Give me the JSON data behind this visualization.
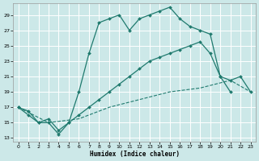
{
  "xlabel": "Humidex (Indice chaleur)",
  "bg_color": "#cce8e8",
  "line_color": "#1f7a6e",
  "grid_color": "#ffffff",
  "xlim": [
    -0.5,
    23.5
  ],
  "ylim": [
    12.5,
    30.5
  ],
  "yticks": [
    13,
    15,
    17,
    19,
    21,
    23,
    25,
    27,
    29
  ],
  "xticks": [
    0,
    1,
    2,
    3,
    4,
    5,
    6,
    7,
    8,
    9,
    10,
    11,
    12,
    13,
    14,
    15,
    16,
    17,
    18,
    19,
    20,
    21,
    22,
    23
  ],
  "line1_x": [
    0,
    1,
    2,
    3,
    4,
    5,
    6,
    7,
    8,
    9,
    10,
    11,
    12,
    13,
    14,
    15,
    16,
    17,
    18,
    19,
    20,
    21
  ],
  "line1_y": [
    17,
    16,
    15,
    15,
    13.5,
    15,
    19,
    24,
    28,
    28.5,
    29,
    27,
    28.5,
    29,
    29.5,
    30,
    28.5,
    27.5,
    27,
    26.5,
    21,
    19
  ],
  "line2_x": [
    0,
    1,
    2,
    3,
    4,
    5,
    6,
    7,
    8,
    9,
    10,
    11,
    12,
    13,
    14,
    15,
    16,
    17,
    18,
    19,
    20,
    21,
    22,
    23
  ],
  "line2_y": [
    17,
    16.5,
    15,
    15.5,
    14,
    15,
    16,
    17,
    18,
    19,
    20,
    21,
    22,
    23,
    23.5,
    24,
    24.5,
    25,
    25.5,
    24,
    21,
    20.5,
    21,
    19
  ],
  "line3_x": [
    0,
    3,
    6,
    9,
    12,
    15,
    18,
    21,
    23
  ],
  "line3_y": [
    17,
    15,
    15.5,
    17,
    18,
    19,
    19.5,
    20.5,
    19
  ]
}
